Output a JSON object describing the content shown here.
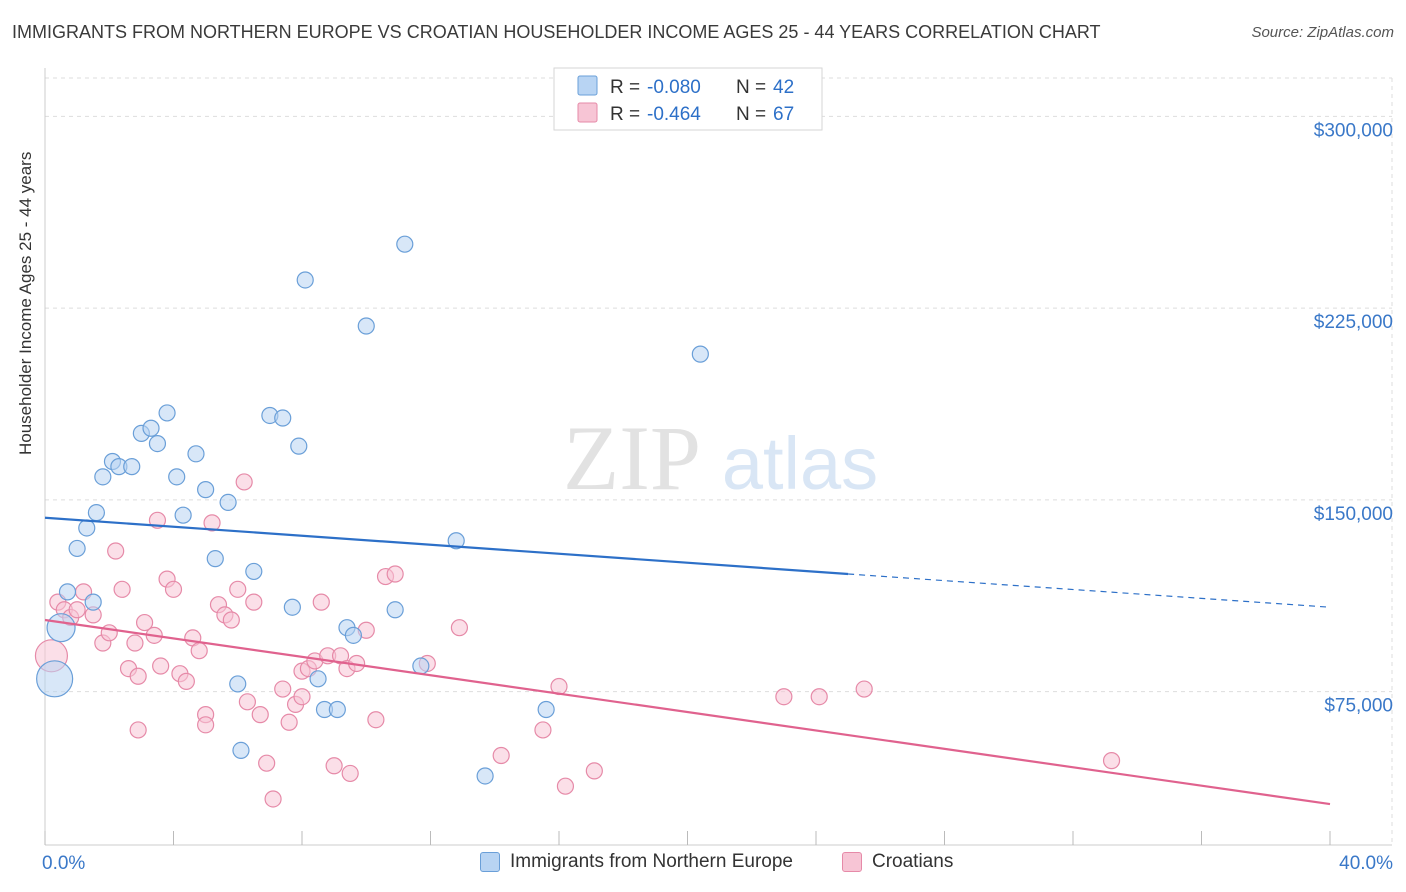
{
  "title": "IMMIGRANTS FROM NORTHERN EUROPE VS CROATIAN HOUSEHOLDER INCOME AGES 25 - 44 YEARS CORRELATION CHART",
  "source": "Source: ZipAtlas.com",
  "watermark": {
    "zip": "ZIP",
    "atlas": "atlas"
  },
  "colors": {
    "blue_fill": "#b8d4f3",
    "blue_stroke": "#6a9fd8",
    "blue_line": "#2d70c8",
    "pink_fill": "#f7c5d5",
    "pink_stroke": "#e68aa8",
    "pink_line": "#e0628e",
    "axis_text": "#3a78c8",
    "grid": "#dddddd"
  },
  "legend": {
    "rows": [
      {
        "r_label": "R = ",
        "r_value": "-0.080",
        "n_label": "N = ",
        "n_value": "42"
      },
      {
        "r_label": "R = ",
        "r_value": "-0.464",
        "n_label": "N = ",
        "n_value": "67"
      }
    ]
  },
  "chart_data": {
    "type": "scatter",
    "title": "IMMIGRANTS FROM NORTHERN EUROPE VS CROATIAN HOUSEHOLDER INCOME AGES 25 - 44 YEARS CORRELATION CHART",
    "xlabel": "",
    "ylabel": "Householder Income Ages 25 - 44 years",
    "xlim": [
      0,
      40
    ],
    "ylim": [
      15000,
      315000
    ],
    "x_ticks": [
      0,
      40
    ],
    "x_tick_labels": [
      "0.0%",
      "40.0%"
    ],
    "y_ticks": [
      75000,
      150000,
      225000,
      300000
    ],
    "y_tick_labels": [
      "$75,000",
      "$150,000",
      "$225,000",
      "$300,000"
    ],
    "grid": true,
    "legend_position": "top-center",
    "series": [
      {
        "name": "Immigrants from Northern Europe",
        "r": -0.08,
        "n": 42,
        "trend": {
          "x": [
            0,
            25,
            40
          ],
          "y": [
            143000,
            121000,
            108000
          ],
          "solid_until": 25
        },
        "points": [
          [
            0.3,
            80000
          ],
          [
            0.5,
            100000
          ],
          [
            0.7,
            114000
          ],
          [
            1.0,
            131000
          ],
          [
            1.3,
            139000
          ],
          [
            1.6,
            145000
          ],
          [
            1.8,
            159000
          ],
          [
            2.1,
            165000
          ],
          [
            2.3,
            163000
          ],
          [
            2.7,
            163000
          ],
          [
            3.0,
            176000
          ],
          [
            3.3,
            178000
          ],
          [
            3.5,
            172000
          ],
          [
            3.8,
            184000
          ],
          [
            4.1,
            159000
          ],
          [
            4.3,
            144000
          ],
          [
            4.7,
            168000
          ],
          [
            5.0,
            154000
          ],
          [
            5.3,
            127000
          ],
          [
            5.7,
            149000
          ],
          [
            6.0,
            78000
          ],
          [
            6.1,
            52000
          ],
          [
            6.5,
            122000
          ],
          [
            7.0,
            183000
          ],
          [
            7.4,
            182000
          ],
          [
            7.7,
            108000
          ],
          [
            7.9,
            171000
          ],
          [
            8.1,
            236000
          ],
          [
            8.5,
            80000
          ],
          [
            8.7,
            68000
          ],
          [
            9.1,
            68000
          ],
          [
            9.4,
            100000
          ],
          [
            9.6,
            97000
          ],
          [
            10.0,
            218000
          ],
          [
            10.9,
            107000
          ],
          [
            11.2,
            250000
          ],
          [
            11.7,
            85000
          ],
          [
            12.8,
            134000
          ],
          [
            13.7,
            42000
          ],
          [
            15.6,
            68000
          ],
          [
            20.4,
            207000
          ],
          [
            1.5,
            110000
          ]
        ]
      },
      {
        "name": "Croatians",
        "r": -0.464,
        "n": 67,
        "trend": {
          "x": [
            0,
            40
          ],
          "y": [
            103000,
            31000
          ]
        },
        "points": [
          [
            0.2,
            89000
          ],
          [
            0.4,
            110000
          ],
          [
            0.6,
            107000
          ],
          [
            0.8,
            104000
          ],
          [
            1.0,
            107000
          ],
          [
            1.2,
            114000
          ],
          [
            1.5,
            105000
          ],
          [
            1.8,
            94000
          ],
          [
            2.0,
            98000
          ],
          [
            2.2,
            130000
          ],
          [
            2.4,
            115000
          ],
          [
            2.6,
            84000
          ],
          [
            2.8,
            94000
          ],
          [
            2.9,
            81000
          ],
          [
            3.1,
            102000
          ],
          [
            3.4,
            97000
          ],
          [
            3.5,
            142000
          ],
          [
            3.6,
            85000
          ],
          [
            3.8,
            119000
          ],
          [
            4.0,
            115000
          ],
          [
            4.2,
            82000
          ],
          [
            4.4,
            79000
          ],
          [
            4.6,
            96000
          ],
          [
            4.8,
            91000
          ],
          [
            5.0,
            66000
          ],
          [
            5.2,
            141000
          ],
          [
            5.4,
            109000
          ],
          [
            5.6,
            105000
          ],
          [
            5.8,
            103000
          ],
          [
            6.0,
            115000
          ],
          [
            6.2,
            157000
          ],
          [
            6.3,
            71000
          ],
          [
            6.5,
            110000
          ],
          [
            6.7,
            66000
          ],
          [
            6.9,
            47000
          ],
          [
            7.1,
            33000
          ],
          [
            7.4,
            76000
          ],
          [
            7.6,
            63000
          ],
          [
            7.8,
            70000
          ],
          [
            8.0,
            83000
          ],
          [
            8.2,
            84000
          ],
          [
            8.4,
            87000
          ],
          [
            8.6,
            110000
          ],
          [
            8.8,
            89000
          ],
          [
            9.0,
            46000
          ],
          [
            9.2,
            89000
          ],
          [
            9.4,
            84000
          ],
          [
            9.5,
            43000
          ],
          [
            9.7,
            86000
          ],
          [
            10.0,
            99000
          ],
          [
            10.3,
            64000
          ],
          [
            10.6,
            120000
          ],
          [
            10.9,
            121000
          ],
          [
            11.9,
            86000
          ],
          [
            12.9,
            100000
          ],
          [
            14.2,
            50000
          ],
          [
            15.5,
            60000
          ],
          [
            16.0,
            77000
          ],
          [
            17.1,
            44000
          ],
          [
            16.2,
            38000
          ],
          [
            23.0,
            73000
          ],
          [
            24.1,
            73000
          ],
          [
            25.5,
            76000
          ],
          [
            33.2,
            48000
          ],
          [
            2.9,
            60000
          ],
          [
            5.0,
            62000
          ],
          [
            8.0,
            73000
          ]
        ]
      }
    ]
  },
  "bottom_legend": [
    "Immigrants from Northern Europe",
    "Croatians"
  ]
}
